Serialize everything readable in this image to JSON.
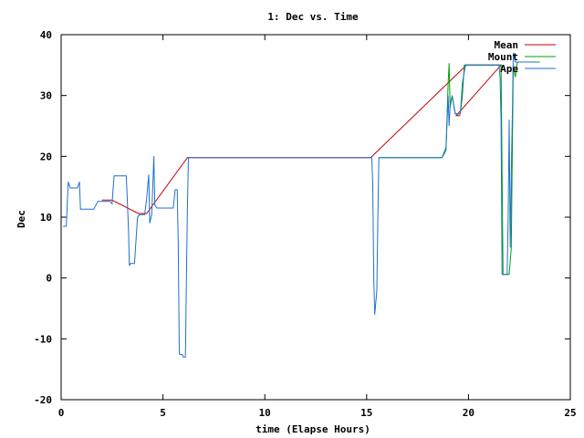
{
  "chart_data": {
    "type": "line",
    "title": "1: Dec vs. Time",
    "xlabel": "time (Elapse Hours)",
    "ylabel": "Dec",
    "xlim": [
      0,
      25
    ],
    "ylim": [
      -20,
      40
    ],
    "xticks": [
      0,
      5,
      10,
      15,
      20,
      25
    ],
    "yticks": [
      -20,
      -10,
      0,
      10,
      20,
      30,
      40
    ],
    "grid": false,
    "legend_position": "top-right",
    "series": [
      {
        "name": "Mean",
        "color": "#c00000",
        "points": [
          [
            2.0,
            12.8
          ],
          [
            2.5,
            12.8
          ],
          [
            3.8,
            10.6
          ],
          [
            4.2,
            10.6
          ],
          [
            6.2,
            19.8
          ],
          [
            15.2,
            19.8
          ],
          [
            19.9,
            35.0
          ],
          [
            21.6,
            35.0
          ],
          [
            19.4,
            26.7
          ],
          [
            19.6,
            26.7
          ]
        ]
      },
      {
        "name": "Mount",
        "color": "#00a000",
        "points": [
          [
            15.6,
            19.8
          ],
          [
            18.7,
            19.8
          ],
          [
            18.9,
            21.0
          ],
          [
            19.0,
            32.0
          ],
          [
            19.05,
            35.3
          ],
          [
            19.1,
            28.0
          ],
          [
            19.2,
            30.0
          ],
          [
            19.35,
            27.0
          ],
          [
            19.6,
            27.0
          ],
          [
            19.7,
            30.0
          ],
          [
            19.8,
            35.0
          ],
          [
            21.6,
            35.0
          ],
          [
            21.7,
            0.6
          ],
          [
            22.0,
            0.6
          ],
          [
            22.1,
            5.0
          ],
          [
            22.2,
            35.0
          ],
          [
            22.3,
            33.0
          ],
          [
            22.4,
            35.5
          ],
          [
            23.5,
            35.5
          ]
        ]
      },
      {
        "name": "Ape",
        "color": "#1f6fd0",
        "points": [
          [
            0.1,
            8.5
          ],
          [
            0.25,
            8.5
          ],
          [
            0.35,
            15.8
          ],
          [
            0.45,
            14.8
          ],
          [
            0.8,
            14.8
          ],
          [
            0.9,
            15.8
          ],
          [
            0.95,
            11.3
          ],
          [
            1.6,
            11.3
          ],
          [
            1.8,
            12.6
          ],
          [
            2.4,
            12.6
          ],
          [
            2.5,
            12.2
          ],
          [
            2.6,
            16.8
          ],
          [
            3.2,
            16.8
          ],
          [
            3.3,
            8.5
          ],
          [
            3.35,
            2.0
          ],
          [
            3.4,
            2.4
          ],
          [
            3.6,
            2.4
          ],
          [
            3.75,
            10.0
          ],
          [
            3.85,
            10.4
          ],
          [
            4.1,
            10.4
          ],
          [
            4.2,
            13.0
          ],
          [
            4.3,
            17.0
          ],
          [
            4.35,
            9.0
          ],
          [
            4.45,
            10.5
          ],
          [
            4.5,
            15.0
          ],
          [
            4.55,
            20.0
          ],
          [
            4.6,
            12.0
          ],
          [
            4.7,
            11.5
          ],
          [
            5.5,
            11.5
          ],
          [
            5.6,
            14.5
          ],
          [
            5.7,
            14.5
          ],
          [
            5.75,
            6.0
          ],
          [
            5.8,
            -12.5
          ],
          [
            5.95,
            -12.6
          ],
          [
            6.0,
            -13.0
          ],
          [
            6.1,
            -13.0
          ],
          [
            6.15,
            0.0
          ],
          [
            6.2,
            11.5
          ],
          [
            6.25,
            19.8
          ],
          [
            15.25,
            19.8
          ],
          [
            15.3,
            15.5
          ],
          [
            15.35,
            0.0
          ],
          [
            15.4,
            -6.0
          ],
          [
            15.5,
            -2.0
          ],
          [
            15.55,
            10.0
          ],
          [
            15.6,
            19.8
          ],
          [
            18.7,
            19.8
          ],
          [
            18.9,
            21.5
          ],
          [
            19.0,
            30.0
          ],
          [
            19.05,
            25.0
          ],
          [
            19.1,
            28.5
          ],
          [
            19.2,
            30.0
          ],
          [
            19.35,
            27.0
          ],
          [
            19.6,
            27.0
          ],
          [
            19.7,
            32.0
          ],
          [
            19.85,
            35.0
          ],
          [
            21.5,
            35.0
          ],
          [
            21.55,
            33.0
          ],
          [
            21.6,
            26.0
          ],
          [
            21.65,
            0.6
          ],
          [
            21.9,
            0.6
          ],
          [
            21.95,
            10.0
          ],
          [
            22.0,
            26.0
          ],
          [
            22.05,
            5.0
          ],
          [
            22.1,
            17.0
          ],
          [
            22.15,
            26.0
          ],
          [
            22.2,
            37.0
          ],
          [
            22.3,
            35.5
          ],
          [
            23.3,
            35.5
          ]
        ]
      }
    ]
  }
}
